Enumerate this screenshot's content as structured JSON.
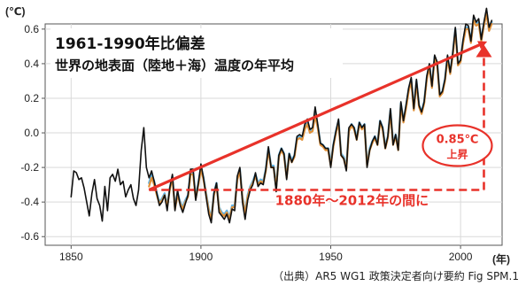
{
  "chart_data": {
    "type": "line",
    "title_line1": "1961-1990年比偏差",
    "title_line2": "世界の地表面（陸地＋海）温度の年平均",
    "y_unit": "(℃)",
    "x_unit": "(年)",
    "xlim": [
      1840,
      2016
    ],
    "ylim": [
      -0.65,
      0.63
    ],
    "x_ticks": [
      1850,
      1900,
      1950,
      2000
    ],
    "x_tick_labels": [
      "1850",
      "1900",
      "1950",
      "2000"
    ],
    "y_ticks": [
      0.6,
      0.4,
      0.2,
      0.0,
      -0.2,
      -0.4,
      -0.6
    ],
    "y_tick_labels": [
      "0.6",
      "0.4",
      "0.2",
      "0.0",
      "-0.2",
      "-0.4",
      "-0.6"
    ],
    "grid": true,
    "series": [
      {
        "name": "",
        "color": "#111111",
        "x": [
          1850,
          1851,
          1852,
          1853,
          1854,
          1855,
          1856,
          1857,
          1858,
          1859,
          1860,
          1861,
          1862,
          1863,
          1864,
          1865,
          1866,
          1867,
          1868,
          1869,
          1870,
          1871,
          1872,
          1873,
          1874,
          1875,
          1876,
          1877,
          1878,
          1879,
          1880,
          1881,
          1882,
          1883,
          1884,
          1885,
          1886,
          1887,
          1888,
          1889,
          1890,
          1891,
          1892,
          1893,
          1894,
          1895,
          1896,
          1897,
          1898,
          1899,
          1900,
          1901,
          1902,
          1903,
          1904,
          1905,
          1906,
          1907,
          1908,
          1909,
          1910,
          1911,
          1912,
          1913,
          1914,
          1915,
          1916,
          1917,
          1918,
          1919,
          1920,
          1921,
          1922,
          1923,
          1924,
          1925,
          1926,
          1927,
          1928,
          1929,
          1930,
          1931,
          1932,
          1933,
          1934,
          1935,
          1936,
          1937,
          1938,
          1939,
          1940,
          1941,
          1942,
          1943,
          1944,
          1945,
          1946,
          1947,
          1948,
          1949,
          1950,
          1951,
          1952,
          1953,
          1954,
          1955,
          1956,
          1957,
          1958,
          1959,
          1960,
          1961,
          1962,
          1963,
          1964,
          1965,
          1966,
          1967,
          1968,
          1969,
          1970,
          1971,
          1972,
          1973,
          1974,
          1975,
          1976,
          1977,
          1978,
          1979,
          1980,
          1981,
          1982,
          1983,
          1984,
          1985,
          1986,
          1987,
          1988,
          1989,
          1990,
          1991,
          1992,
          1993,
          1994,
          1995,
          1996,
          1997,
          1998,
          1999,
          2000,
          2001,
          2002,
          2003,
          2004,
          2005,
          2006,
          2007,
          2008,
          2009,
          2010,
          2011,
          2012
        ],
        "y": [
          -0.37,
          -0.22,
          -0.23,
          -0.27,
          -0.26,
          -0.32,
          -0.4,
          -0.48,
          -0.35,
          -0.27,
          -0.38,
          -0.42,
          -0.51,
          -0.31,
          -0.45,
          -0.26,
          -0.24,
          -0.28,
          -0.21,
          -0.3,
          -0.28,
          -0.37,
          -0.33,
          -0.3,
          -0.38,
          -0.42,
          -0.33,
          -0.1,
          0.03,
          -0.2,
          -0.26,
          -0.22,
          -0.28,
          -0.35,
          -0.42,
          -0.4,
          -0.36,
          -0.45,
          -0.32,
          -0.24,
          -0.45,
          -0.33,
          -0.42,
          -0.46,
          -0.41,
          -0.36,
          -0.21,
          -0.21,
          -0.39,
          -0.29,
          -0.18,
          -0.26,
          -0.37,
          -0.47,
          -0.52,
          -0.35,
          -0.29,
          -0.46,
          -0.48,
          -0.5,
          -0.47,
          -0.52,
          -0.44,
          -0.45,
          -0.25,
          -0.2,
          -0.4,
          -0.5,
          -0.39,
          -0.33,
          -0.3,
          -0.23,
          -0.31,
          -0.29,
          -0.3,
          -0.21,
          -0.08,
          -0.2,
          -0.2,
          -0.34,
          -0.13,
          -0.09,
          -0.12,
          -0.27,
          -0.12,
          -0.17,
          -0.13,
          -0.02,
          -0.01,
          -0.02,
          0.05,
          0.08,
          0.02,
          0.03,
          0.15,
          0.05,
          -0.06,
          -0.07,
          -0.09,
          -0.09,
          -0.2,
          -0.07,
          0.01,
          0.08,
          -0.13,
          -0.15,
          -0.22,
          0.03,
          0.05,
          0.03,
          -0.04,
          0.06,
          0.03,
          0.05,
          -0.2,
          -0.1,
          -0.05,
          -0.02,
          -0.07,
          0.07,
          0.03,
          -0.09,
          -0.02,
          0.14,
          -0.07,
          -0.01,
          -0.1,
          0.18,
          0.07,
          0.16,
          0.26,
          0.32,
          0.14,
          0.31,
          0.16,
          0.12,
          0.18,
          0.33,
          0.4,
          0.27,
          0.45,
          0.41,
          0.22,
          0.24,
          0.31,
          0.45,
          0.35,
          0.46,
          0.61,
          0.4,
          0.42,
          0.54,
          0.63,
          0.62,
          0.53,
          0.68,
          0.64,
          0.66,
          0.54,
          0.64,
          0.72,
          0.61,
          0.65
        ]
      },
      {
        "name": "",
        "color": "#e0913a",
        "x": [
          1880,
          1881,
          1882,
          1883,
          1884,
          1885,
          1886,
          1887,
          1888,
          1889,
          1890,
          1891,
          1892,
          1893,
          1894,
          1895,
          1896,
          1897,
          1898,
          1899,
          1900,
          1901,
          1902,
          1903,
          1904,
          1905,
          1906,
          1907,
          1908,
          1909,
          1910,
          1911,
          1912,
          1913,
          1914,
          1915,
          1916,
          1917,
          1918,
          1919,
          1920,
          1921,
          1922,
          1923,
          1924,
          1925,
          1926,
          1927,
          1928,
          1929,
          1930,
          1931,
          1932,
          1933,
          1934,
          1935,
          1936,
          1937,
          1938,
          1939,
          1940,
          1941,
          1942,
          1943,
          1944,
          1945,
          1946,
          1947,
          1948,
          1949,
          1950,
          1951,
          1952,
          1953,
          1954,
          1955,
          1956,
          1957,
          1958,
          1959,
          1960,
          1961,
          1962,
          1963,
          1964,
          1965,
          1966,
          1967,
          1968,
          1969,
          1970,
          1971,
          1972,
          1973,
          1974,
          1975,
          1976,
          1977,
          1978,
          1979,
          1980,
          1981,
          1982,
          1983,
          1984,
          1985,
          1986,
          1987,
          1988,
          1989,
          1990,
          1991,
          1992,
          1993,
          1994,
          1995,
          1996,
          1997,
          1998,
          1999,
          2000,
          2001,
          2002,
          2003,
          2004,
          2005,
          2006,
          2007,
          2008,
          2009,
          2010,
          2011,
          2012
        ],
        "y": [
          -0.31,
          -0.26,
          -0.3,
          -0.36,
          -0.41,
          -0.39,
          -0.36,
          -0.43,
          -0.33,
          -0.26,
          -0.44,
          -0.36,
          -0.41,
          -0.44,
          -0.4,
          -0.37,
          -0.24,
          -0.24,
          -0.38,
          -0.3,
          -0.21,
          -0.27,
          -0.36,
          -0.45,
          -0.5,
          -0.36,
          -0.3,
          -0.44,
          -0.47,
          -0.48,
          -0.46,
          -0.5,
          -0.43,
          -0.43,
          -0.27,
          -0.22,
          -0.38,
          -0.47,
          -0.37,
          -0.32,
          -0.29,
          -0.25,
          -0.3,
          -0.28,
          -0.29,
          -0.22,
          -0.1,
          -0.2,
          -0.2,
          -0.32,
          -0.14,
          -0.1,
          -0.13,
          -0.26,
          -0.13,
          -0.17,
          -0.14,
          -0.04,
          -0.03,
          -0.04,
          0.02,
          0.05,
          0.0,
          0.01,
          0.1,
          0.03,
          -0.07,
          -0.08,
          -0.1,
          -0.1,
          -0.19,
          -0.08,
          0.0,
          0.06,
          -0.13,
          -0.15,
          -0.21,
          0.01,
          0.04,
          0.02,
          -0.04,
          0.05,
          0.02,
          0.04,
          -0.19,
          -0.1,
          -0.06,
          -0.03,
          -0.07,
          0.06,
          0.02,
          -0.09,
          -0.03,
          0.12,
          -0.07,
          -0.02,
          -0.1,
          0.16,
          0.06,
          0.14,
          0.24,
          0.3,
          0.13,
          0.29,
          0.15,
          0.11,
          0.17,
          0.31,
          0.38,
          0.26,
          0.43,
          0.39,
          0.21,
          0.23,
          0.3,
          0.43,
          0.34,
          0.45,
          0.59,
          0.39,
          0.41,
          0.52,
          0.6,
          0.6,
          0.52,
          0.65,
          0.62,
          0.63,
          0.53,
          0.62,
          0.69,
          0.59,
          0.63
        ]
      },
      {
        "name": "",
        "color": "#5fb4e6",
        "x": [
          1880,
          1881,
          1882,
          1883,
          1884,
          1885,
          1886,
          1887,
          1888,
          1889,
          1890,
          1891,
          1892,
          1893,
          1894,
          1895,
          1896,
          1897,
          1898,
          1899,
          1900,
          1901,
          1902,
          1903,
          1904,
          1905,
          1906,
          1907,
          1908,
          1909,
          1910,
          1911,
          1912,
          1913,
          1914,
          1915,
          1916,
          1917,
          1918,
          1919,
          1920,
          1921,
          1922,
          1923,
          1924,
          1925,
          1926,
          1927,
          1928,
          1929,
          1930,
          1931,
          1932,
          1933,
          1934,
          1935,
          1936,
          1937,
          1938,
          1939,
          1940,
          1941,
          1942,
          1943,
          1944,
          1945,
          1946,
          1947,
          1948,
          1949,
          1950,
          1951,
          1952,
          1953,
          1954,
          1955,
          1956,
          1957,
          1958,
          1959,
          1960,
          1961,
          1962,
          1963,
          1964,
          1965,
          1966,
          1967,
          1968,
          1969,
          1970,
          1971,
          1972,
          1973,
          1974,
          1975,
          1976,
          1977,
          1978,
          1979,
          1980,
          1981,
          1982,
          1983,
          1984,
          1985,
          1986,
          1987,
          1988,
          1989,
          1990,
          1991,
          1992,
          1993,
          1994,
          1995,
          1996,
          1997,
          1998,
          1999,
          2000,
          2001,
          2002,
          2003,
          2004,
          2005,
          2006,
          2007,
          2008,
          2009,
          2010,
          2011,
          2012
        ],
        "y": [
          -0.29,
          -0.24,
          -0.28,
          -0.35,
          -0.4,
          -0.38,
          -0.35,
          -0.42,
          -0.32,
          -0.25,
          -0.43,
          -0.35,
          -0.4,
          -0.43,
          -0.39,
          -0.36,
          -0.23,
          -0.23,
          -0.37,
          -0.29,
          -0.2,
          -0.26,
          -0.35,
          -0.44,
          -0.49,
          -0.35,
          -0.29,
          -0.43,
          -0.46,
          -0.47,
          -0.45,
          -0.49,
          -0.42,
          -0.42,
          -0.26,
          -0.21,
          -0.37,
          -0.46,
          -0.36,
          -0.31,
          -0.28,
          -0.24,
          -0.29,
          -0.27,
          -0.28,
          -0.21,
          -0.09,
          -0.19,
          -0.19,
          -0.31,
          -0.13,
          -0.09,
          -0.12,
          -0.25,
          -0.12,
          -0.16,
          -0.13,
          -0.03,
          -0.02,
          -0.03,
          0.03,
          0.06,
          0.01,
          0.02,
          0.11,
          0.04,
          -0.06,
          -0.07,
          -0.09,
          -0.09,
          -0.18,
          -0.07,
          0.01,
          0.07,
          -0.12,
          -0.14,
          -0.2,
          0.02,
          0.05,
          0.03,
          -0.03,
          0.06,
          0.03,
          0.05,
          -0.18,
          -0.09,
          -0.05,
          -0.02,
          -0.06,
          0.07,
          0.03,
          -0.08,
          -0.02,
          0.13,
          -0.06,
          -0.01,
          -0.09,
          0.17,
          0.07,
          0.15,
          0.25,
          0.31,
          0.14,
          0.3,
          0.16,
          0.12,
          0.18,
          0.32,
          0.39,
          0.27,
          0.44,
          0.4,
          0.22,
          0.24,
          0.31,
          0.44,
          0.35,
          0.46,
          0.6,
          0.4,
          0.42,
          0.53,
          0.61,
          0.61,
          0.53,
          0.66,
          0.63,
          0.64,
          0.54,
          0.63,
          0.7,
          0.6,
          0.64
        ]
      }
    ],
    "annotations": {
      "trend_from": [
        1880,
        -0.33
      ],
      "trend_to": [
        2009,
        0.52
      ],
      "baseline_y": -0.33,
      "baseline_from_x": 1880,
      "baseline_to_x": 2009,
      "baseline_label": "1880年～2012年の間に",
      "badge_line1": "0.85℃",
      "badge_line2": "上昇",
      "source": "（出典）AR5 WG1 政策決定者向け要約 Fig SPM.1"
    }
  }
}
